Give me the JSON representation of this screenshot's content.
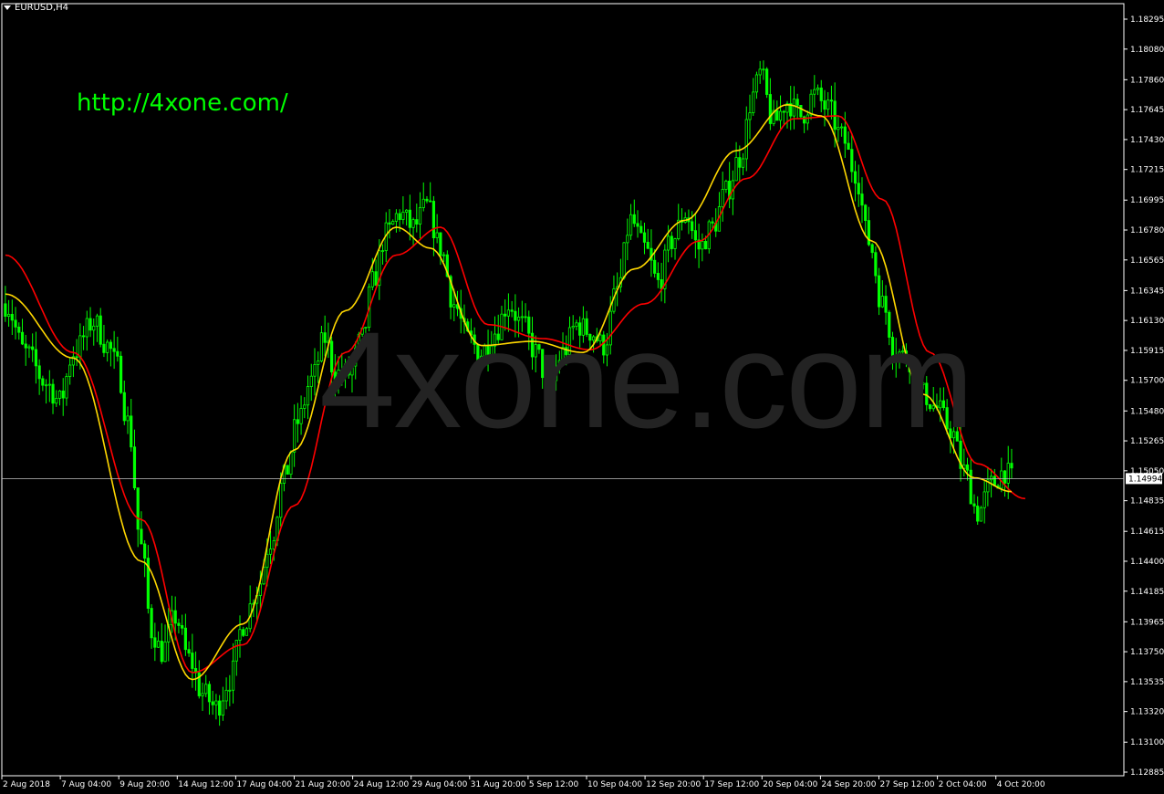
{
  "window": {
    "symbol_label": "EURUSD,H4"
  },
  "overlay": {
    "link": "http://4xone.com/",
    "watermark": "4xone.com"
  },
  "colors": {
    "bull": "#00ff00",
    "bear": "#00ff00",
    "ma_fast": "#ffd700",
    "ma_slow": "#ff0000",
    "grid": "#ffffff",
    "bid_line": "#c0c0c0",
    "axis_text": "#ffffff"
  },
  "chart_data": {
    "type": "candlestick",
    "instrument": "EURUSD",
    "timeframe": "H4",
    "ylim": [
      1.12885,
      1.18295
    ],
    "y_ticks": [
      "1.18295",
      "1.18080",
      "1.17860",
      "1.17645",
      "1.17430",
      "1.17215",
      "1.16995",
      "1.16780",
      "1.16565",
      "1.16345",
      "1.16130",
      "1.15915",
      "1.15700",
      "1.15480",
      "1.15265",
      "1.15050",
      "1.14835",
      "1.14615",
      "1.14400",
      "1.14185",
      "1.13965",
      "1.13750",
      "1.13535",
      "1.13320",
      "1.13100",
      "1.12885"
    ],
    "x_ticks": [
      "2 Aug 2018",
      "7 Aug 04:00",
      "9 Aug 20:00",
      "14 Aug 12:00",
      "17 Aug 04:00",
      "21 Aug 20:00",
      "24 Aug 12:00",
      "29 Aug 04:00",
      "31 Aug 20:00",
      "5 Sep 12:00",
      "10 Sep 04:00",
      "12 Sep 20:00",
      "17 Sep 12:00",
      "20 Sep 04:00",
      "24 Sep 20:00",
      "27 Sep 12:00",
      "2 Oct 04:00",
      "4 Oct 20:00"
    ],
    "current_price": "1.14994",
    "anchors": [
      [
        0,
        1.1625
      ],
      [
        6,
        1.159
      ],
      [
        12,
        1.1568
      ],
      [
        16,
        1.1555
      ],
      [
        20,
        1.159
      ],
      [
        26,
        1.1612
      ],
      [
        30,
        1.1595
      ],
      [
        33,
        1.158
      ],
      [
        36,
        1.154
      ],
      [
        40,
        1.145
      ],
      [
        43,
        1.139
      ],
      [
        46,
        1.1375
      ],
      [
        50,
        1.14
      ],
      [
        54,
        1.137
      ],
      [
        58,
        1.1345
      ],
      [
        62,
        1.1335
      ],
      [
        66,
        1.1355
      ],
      [
        70,
        1.1395
      ],
      [
        74,
        1.142
      ],
      [
        78,
        1.1455
      ],
      [
        82,
        1.15
      ],
      [
        86,
        1.154
      ],
      [
        90,
        1.157
      ],
      [
        94,
        1.16
      ],
      [
        97,
        1.1575
      ],
      [
        101,
        1.1575
      ],
      [
        105,
        1.16
      ],
      [
        108,
        1.164
      ],
      [
        112,
        1.1675
      ],
      [
        116,
        1.169
      ],
      [
        120,
        1.168
      ],
      [
        124,
        1.1695
      ],
      [
        128,
        1.1665
      ],
      [
        132,
        1.1625
      ],
      [
        136,
        1.16
      ],
      [
        140,
        1.159
      ],
      [
        144,
        1.1605
      ],
      [
        148,
        1.1625
      ],
      [
        152,
        1.161
      ],
      [
        156,
        1.159
      ],
      [
        160,
        1.1565
      ],
      [
        164,
        1.159
      ],
      [
        168,
        1.161
      ],
      [
        172,
        1.1605
      ],
      [
        176,
        1.1595
      ],
      [
        180,
        1.1635
      ],
      [
        184,
        1.1685
      ],
      [
        188,
        1.1665
      ],
      [
        192,
        1.164
      ],
      [
        196,
        1.167
      ],
      [
        200,
        1.169
      ],
      [
        204,
        1.1665
      ],
      [
        208,
        1.168
      ],
      [
        212,
        1.1705
      ],
      [
        216,
        1.173
      ],
      [
        220,
        1.1775
      ],
      [
        222,
        1.179
      ],
      [
        226,
        1.1755
      ],
      [
        230,
        1.177
      ],
      [
        234,
        1.176
      ],
      [
        238,
        1.1775
      ],
      [
        242,
        1.1765
      ],
      [
        246,
        1.1745
      ],
      [
        250,
        1.172
      ],
      [
        254,
        1.167
      ],
      [
        258,
        1.1625
      ],
      [
        262,
        1.159
      ],
      [
        266,
        1.1585
      ],
      [
        270,
        1.156
      ],
      [
        274,
        1.155
      ],
      [
        278,
        1.1535
      ],
      [
        282,
        1.1505
      ],
      [
        286,
        1.1475
      ],
      [
        290,
        1.1495
      ],
      [
        294,
        1.1505
      ],
      [
        296,
        1.1499
      ]
    ],
    "ma_fast": [
      [
        0,
        1.1632
      ],
      [
        20,
        1.1586
      ],
      [
        40,
        1.144
      ],
      [
        55,
        1.1355
      ],
      [
        70,
        1.1395
      ],
      [
        85,
        1.152
      ],
      [
        100,
        1.162
      ],
      [
        115,
        1.168
      ],
      [
        125,
        1.1665
      ],
      [
        140,
        1.1595
      ],
      [
        155,
        1.1598
      ],
      [
        170,
        1.159
      ],
      [
        185,
        1.165
      ],
      [
        200,
        1.1685
      ],
      [
        215,
        1.1735
      ],
      [
        230,
        1.1768
      ],
      [
        240,
        1.176
      ],
      [
        255,
        1.167
      ],
      [
        270,
        1.156
      ],
      [
        285,
        1.15
      ],
      [
        296,
        1.149
      ]
    ],
    "ma_slow": [
      [
        0,
        1.166
      ],
      [
        20,
        1.159
      ],
      [
        40,
        1.147
      ],
      [
        55,
        1.136
      ],
      [
        70,
        1.138
      ],
      [
        85,
        1.148
      ],
      [
        100,
        1.159
      ],
      [
        115,
        1.166
      ],
      [
        128,
        1.168
      ],
      [
        142,
        1.161
      ],
      [
        158,
        1.16
      ],
      [
        172,
        1.1592
      ],
      [
        188,
        1.1625
      ],
      [
        204,
        1.167
      ],
      [
        218,
        1.1715
      ],
      [
        232,
        1.1758
      ],
      [
        245,
        1.176
      ],
      [
        258,
        1.17
      ],
      [
        272,
        1.159
      ],
      [
        286,
        1.151
      ],
      [
        300,
        1.1485
      ]
    ]
  }
}
